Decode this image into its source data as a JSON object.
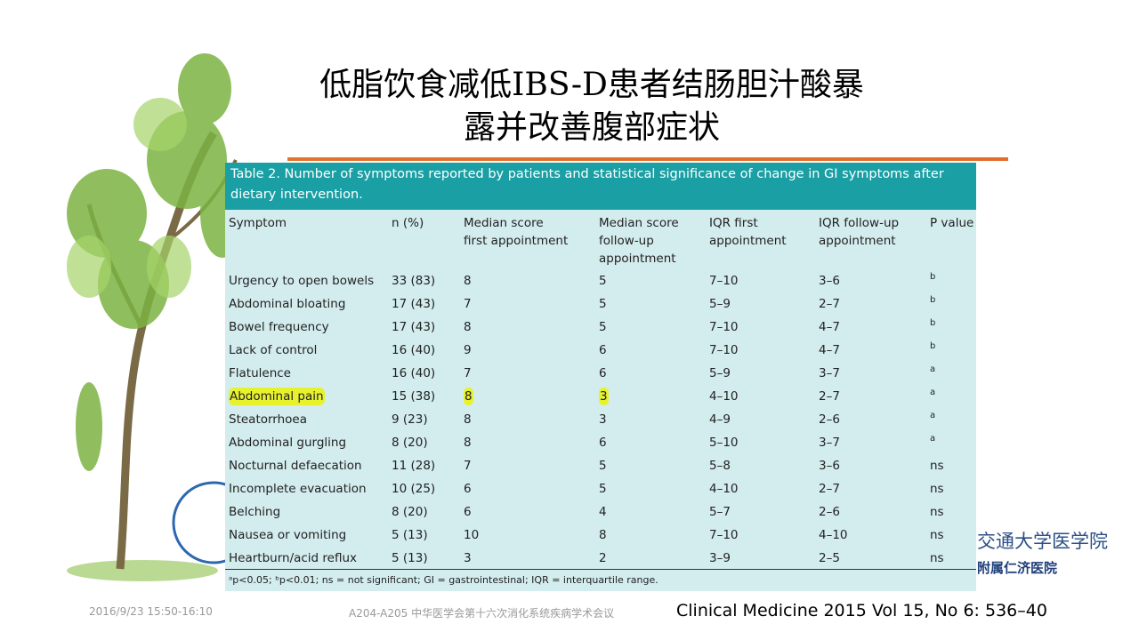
{
  "title": {
    "lines": [
      "低脂饮食减低IBS-D患者结肠胆汁酸暴",
      "露并改善腹部症状"
    ]
  },
  "table": {
    "caption": "Table 2. Number of symptoms reported by patients and statistical significance of change in GI symptoms after dietary intervention.",
    "headers": [
      "Symptom",
      "n (%)",
      "Median score\nfirst appointment",
      "Median score\nfollow-up\nappointment",
      "IQR first\nappointment",
      "IQR follow-up\nappointment",
      "P value"
    ],
    "rows": [
      [
        "Urgency to open bowels",
        "33 (83)",
        "8",
        "5",
        "7–10",
        "3–6",
        "b"
      ],
      [
        "Abdominal bloating",
        "17 (43)",
        "7",
        "5",
        "5–9",
        "2–7",
        "b"
      ],
      [
        "Bowel frequency",
        "17 (43)",
        "8",
        "5",
        "7–10",
        "4–7",
        "b"
      ],
      [
        "Lack of control",
        "16 (40)",
        "9",
        "6",
        "7–10",
        "4–7",
        "b"
      ],
      [
        "Flatulence",
        "16 (40)",
        "7",
        "6",
        "5–9",
        "3–7",
        "a"
      ],
      [
        "Abdominal pain",
        "15 (38)",
        "8",
        "3",
        "4–10",
        "2–7",
        "a"
      ],
      [
        "Steatorrhoea",
        "9 (23)",
        "8",
        "3",
        "4–9",
        "2–6",
        "a"
      ],
      [
        "Abdominal gurgling",
        "8 (20)",
        "8",
        "6",
        "5–10",
        "3–7",
        "a"
      ],
      [
        "Nocturnal defaecation",
        "11 (28)",
        "7",
        "5",
        "5–8",
        "3–6",
        "ns"
      ],
      [
        "Incomplete evacuation",
        "10 (25)",
        "6",
        "5",
        "4–10",
        "2–7",
        "ns"
      ],
      [
        "Belching",
        "8 (20)",
        "6",
        "4",
        "5–7",
        "2–6",
        "ns"
      ],
      [
        "Nausea or vomiting",
        "5 (13)",
        "10",
        "8",
        "7–10",
        "4–10",
        "ns"
      ],
      [
        "Heartburn/acid reflux",
        "5 (13)",
        "3",
        "2",
        "3–9",
        "2–5",
        "ns"
      ]
    ],
    "footnote": "ᵃp<0.05; ᵇp<0.01; ns = not significant; GI = gastrointestinal; IQR = interquartile range."
  },
  "footer": {
    "date": "2016/9/23 15:50-16:10",
    "conference": "A204-A205 中华医学会第十六次消化系统疾病学术会议",
    "citation": "Clinical Medicine 2015 Vol 15, No 6: 536–40"
  },
  "logo": {
    "line1": "交通大学医学院",
    "line2": "附属仁济医院"
  }
}
